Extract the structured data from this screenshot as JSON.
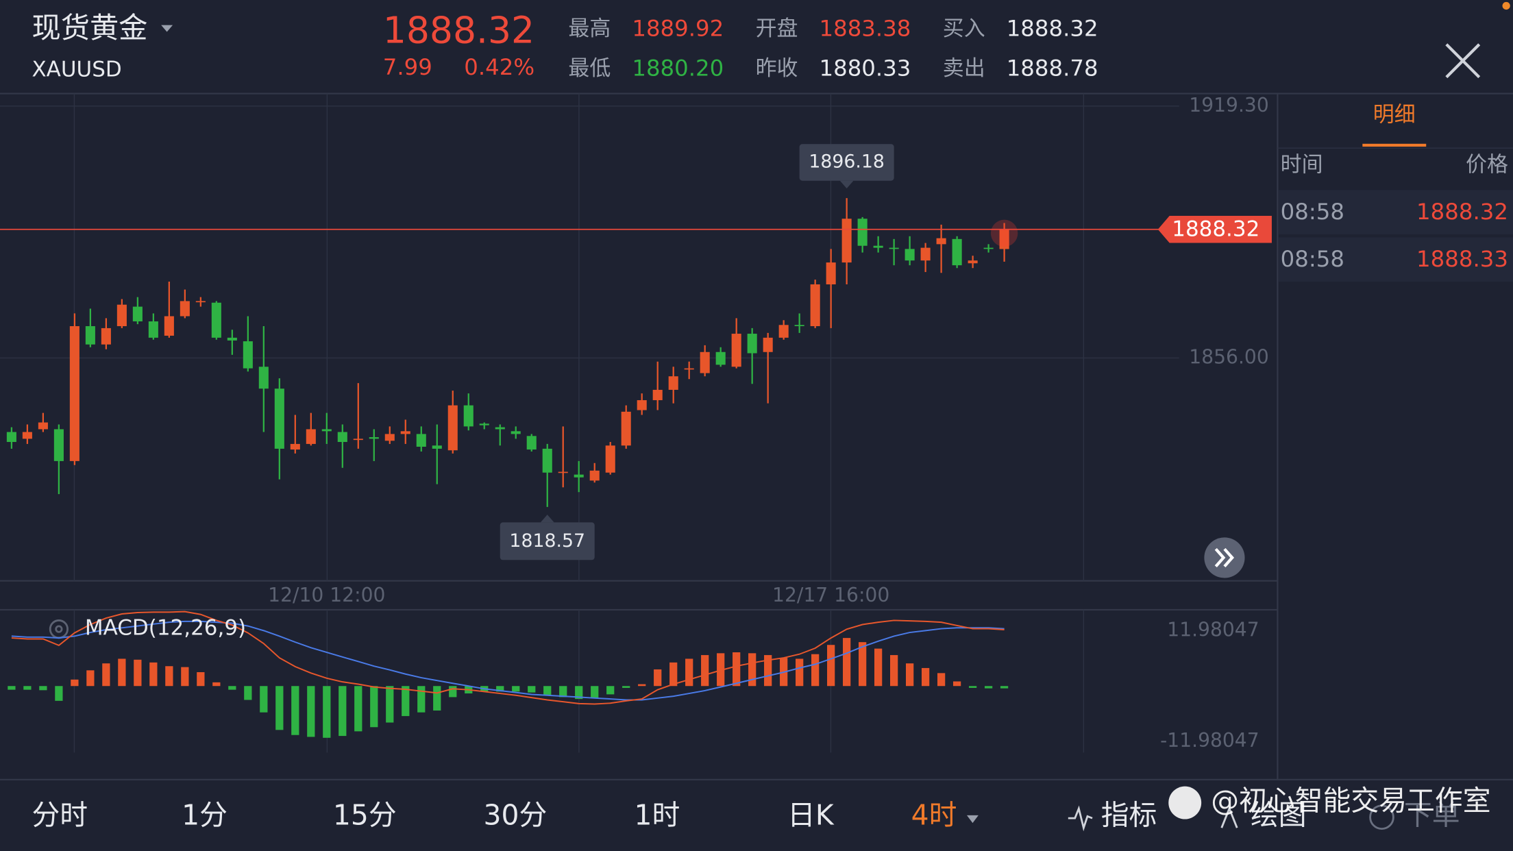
{
  "header": {
    "name": "现货黄金",
    "symbol": "XAUUSD",
    "price": "1888.32",
    "change": "7.99",
    "change_pct": "0.42%",
    "stats": [
      {
        "label": "最高",
        "value": "1889.92"
      },
      {
        "label": "开盘",
        "value": "1883.38"
      },
      {
        "label": "买入",
        "value": "1888.32"
      },
      {
        "label": "最低",
        "value": "1880.20"
      },
      {
        "label": "昨收",
        "value": "1880.33"
      },
      {
        "label": "卖出",
        "value": "1888.78"
      }
    ]
  },
  "side_panel": {
    "tab": "明细",
    "columns": [
      "时间",
      "价格"
    ],
    "rows": [
      [
        "08:58",
        "1888.32"
      ],
      [
        "08:58",
        "1888.33"
      ]
    ]
  },
  "toolbar": {
    "periods": [
      "分时",
      "1分",
      "15分",
      "30分",
      "1时",
      "日K",
      "4时"
    ],
    "active": 6,
    "tools": [
      "指标",
      "绘图",
      "下单"
    ]
  },
  "watermark": "@初心智能交易工作室",
  "chart_data": [
    {
      "type": "candlestick",
      "up_color": "#e8562a",
      "down_color": "#2fb344",
      "grid": true,
      "categories": [
        null,
        null,
        null,
        null,
        null,
        null,
        null,
        null,
        null,
        null,
        null,
        null,
        null,
        null,
        null,
        null,
        null,
        null,
        null,
        null,
        "12/10 12:00",
        null,
        null,
        null,
        null,
        null,
        null,
        null,
        null,
        null,
        null,
        null,
        null,
        null,
        null,
        null,
        null,
        null,
        null,
        null,
        null,
        null,
        null,
        null,
        null,
        null,
        null,
        null,
        null,
        null,
        null,
        null,
        "12/17 16:00",
        null,
        null,
        null,
        null,
        null,
        null,
        null,
        null,
        null,
        null,
        null
      ],
      "open": [
        1837.4,
        1835.7,
        1838.1,
        1838.1,
        1830.1,
        1864.0,
        1859.4,
        1864.0,
        1868.9,
        1865.2,
        1861.6,
        1866.5,
        1870.1,
        1869.9,
        1861.1,
        1860.2,
        1853.8,
        1848.3,
        1833.0,
        1834.4,
        1838.1,
        1837.4,
        1835.4,
        1836.1,
        1835.2,
        1836.9,
        1836.9,
        1834.0,
        1832.8,
        1844.1,
        1839.5,
        1838.6,
        1837.6,
        1836.4,
        1833.2,
        1827.2,
        1826.7,
        1825.2,
        1827.2,
        1834.0,
        1842.9,
        1845.4,
        1848.0,
        1853.1,
        1852.2,
        1857.5,
        1853.8,
        1862.1,
        1857.5,
        1861.1,
        1864.3,
        1864.0,
        1874.5,
        1880.0,
        1891.0,
        1884.2,
        1883.7,
        1883.4,
        1880.5,
        1884.6,
        1885.9,
        1879.8,
        1883.7,
        1883.38
      ],
      "high": [
        1838.6,
        1839.3,
        1842.2,
        1839.3,
        1867.2,
        1868.4,
        1866.0,
        1870.8,
        1871.3,
        1867.2,
        1875.2,
        1873.2,
        1871.3,
        1870.3,
        1863.1,
        1866.5,
        1864.0,
        1850.9,
        1841.7,
        1842.2,
        1842.2,
        1839.3,
        1849.7,
        1838.1,
        1838.8,
        1840.5,
        1838.8,
        1839.3,
        1847.8,
        1847.1,
        1839.8,
        1839.3,
        1838.8,
        1836.9,
        1834.4,
        1838.8,
        1830.1,
        1829.6,
        1834.9,
        1844.1,
        1847.1,
        1855.1,
        1853.8,
        1855.1,
        1859.2,
        1858.7,
        1866.0,
        1863.5,
        1862.3,
        1865.5,
        1867.2,
        1875.7,
        1883.4,
        1896.18,
        1891.4,
        1886.6,
        1885.9,
        1886.6,
        1884.9,
        1889.5,
        1886.6,
        1881.7,
        1884.6,
        1889.92
      ],
      "low": [
        1833.2,
        1834.4,
        1837.4,
        1821.8,
        1829.1,
        1858.7,
        1858.2,
        1863.5,
        1864.5,
        1860.6,
        1861.1,
        1866.0,
        1868.9,
        1860.6,
        1856.8,
        1852.6,
        1837.4,
        1825.5,
        1832.0,
        1834.0,
        1834.4,
        1828.4,
        1833.2,
        1830.1,
        1834.4,
        1834.4,
        1832.5,
        1824.3,
        1832.0,
        1837.8,
        1838.1,
        1834.0,
        1835.7,
        1832.5,
        1818.57,
        1823.5,
        1822.3,
        1824.7,
        1826.7,
        1833.2,
        1841.7,
        1842.9,
        1844.6,
        1850.7,
        1851.4,
        1853.8,
        1853.4,
        1849.5,
        1844.6,
        1860.6,
        1862.3,
        1863.5,
        1863.5,
        1874.5,
        1882.5,
        1882.5,
        1879.3,
        1879.3,
        1877.6,
        1877.4,
        1878.6,
        1878.6,
        1882.5,
        1880.2
      ],
      "close": [
        1834.9,
        1837.4,
        1839.8,
        1830.1,
        1864.0,
        1859.4,
        1863.5,
        1869.4,
        1865.2,
        1861.1,
        1866.5,
        1870.3,
        1870.3,
        1861.1,
        1860.4,
        1853.4,
        1848.3,
        1833.2,
        1834.4,
        1838.1,
        1837.6,
        1834.9,
        1835.7,
        1835.7,
        1836.9,
        1837.6,
        1833.7,
        1833.2,
        1844.1,
        1838.8,
        1839.1,
        1838.1,
        1836.9,
        1833.0,
        1827.2,
        1827.4,
        1826.0,
        1827.7,
        1834.0,
        1842.5,
        1845.4,
        1848.0,
        1851.4,
        1853.4,
        1857.5,
        1854.3,
        1862.1,
        1857.2,
        1861.1,
        1864.3,
        1864.0,
        1874.5,
        1880.0,
        1891.0,
        1884.2,
        1883.7,
        1883.4,
        1880.5,
        1883.7,
        1886.1,
        1879.3,
        1880.5,
        1883.4,
        1888.32
      ],
      "ylim": [
        1800,
        1922.2
      ],
      "yticks": [
        {
          "value": 1919.3,
          "label": "1919.30"
        },
        {
          "value": 1856,
          "label": "1856.00"
        }
      ]
    },
    {
      "type": "macd",
      "title": "MACD(12,26,9)",
      "up_color": "#e8562a",
      "down_color": "#2fb344",
      "dif_color": "#e8572c",
      "dea_color": "#4a7be8",
      "histogram": [
        -0.8,
        -0.8,
        -0.9,
        -3.2,
        1.4,
        3.4,
        4.9,
        5.9,
        5.7,
        5.1,
        4.3,
        4.1,
        3.0,
        0.8,
        -0.8,
        -3.0,
        -5.7,
        -9.5,
        -10.6,
        -11.0,
        -11.2,
        -10.8,
        -9.8,
        -8.9,
        -7.9,
        -6.5,
        -5.7,
        -5.3,
        -2.4,
        -1.6,
        -1.2,
        -1.2,
        -1.2,
        -1.4,
        -2.0,
        -2.4,
        -2.8,
        -2.6,
        -1.8,
        -0.4,
        0.4,
        3.6,
        5.1,
        5.9,
        6.7,
        7.1,
        7.3,
        7.1,
        6.7,
        6.1,
        5.9,
        6.9,
        8.9,
        10.4,
        9.5,
        8.1,
        6.7,
        4.9,
        3.9,
        2.8,
        1.0,
        -0.4,
        -0.5,
        -0.5
      ],
      "dif": [
        10.4,
        10.2,
        10.2,
        8.8,
        11.5,
        13.3,
        14.7,
        15.6,
        15.9,
        16.0,
        16.0,
        16.1,
        15.5,
        14.2,
        13.2,
        11.5,
        9.2,
        6.1,
        4.2,
        2.8,
        1.7,
        0.9,
        0.4,
        -0.2,
        -0.5,
        -0.7,
        -1.1,
        -1.5,
        -0.6,
        -0.8,
        -1.2,
        -1.6,
        -2.0,
        -2.5,
        -3.0,
        -3.4,
        -3.8,
        -3.9,
        -3.7,
        -3.2,
        -2.8,
        -0.8,
        0.4,
        1.4,
        2.4,
        3.4,
        4.3,
        5.0,
        5.6,
        6.1,
        6.9,
        8.2,
        10.4,
        12.3,
        13.3,
        13.8,
        14.2,
        14.1,
        14.0,
        13.8,
        13.1,
        12.4,
        12.4,
        12.2
      ],
      "dea": [
        10.8,
        10.6,
        10.6,
        10.4,
        10.8,
        11.6,
        12.2,
        12.6,
        13.0,
        13.4,
        13.8,
        14.0,
        14.0,
        13.8,
        13.6,
        13.0,
        12.0,
        10.8,
        9.5,
        8.3,
        7.3,
        6.3,
        5.3,
        4.3,
        3.5,
        2.6,
        1.8,
        1.2,
        0.6,
        0,
        -0.6,
        -1.0,
        -1.4,
        -1.8,
        -2.0,
        -2.2,
        -2.4,
        -2.6,
        -2.8,
        -3.0,
        -3.0,
        -2.6,
        -2.2,
        -1.6,
        -1.0,
        -0.2,
        0.6,
        1.4,
        2.2,
        3.0,
        3.9,
        4.7,
        5.9,
        7.1,
        8.5,
        9.7,
        10.8,
        11.6,
        12.0,
        12.4,
        12.6,
        12.6,
        12.6,
        12.4
      ],
      "ylim": [
        -14.4,
        16.5
      ],
      "yticks": [
        11.98047,
        -11.98047
      ]
    }
  ]
}
